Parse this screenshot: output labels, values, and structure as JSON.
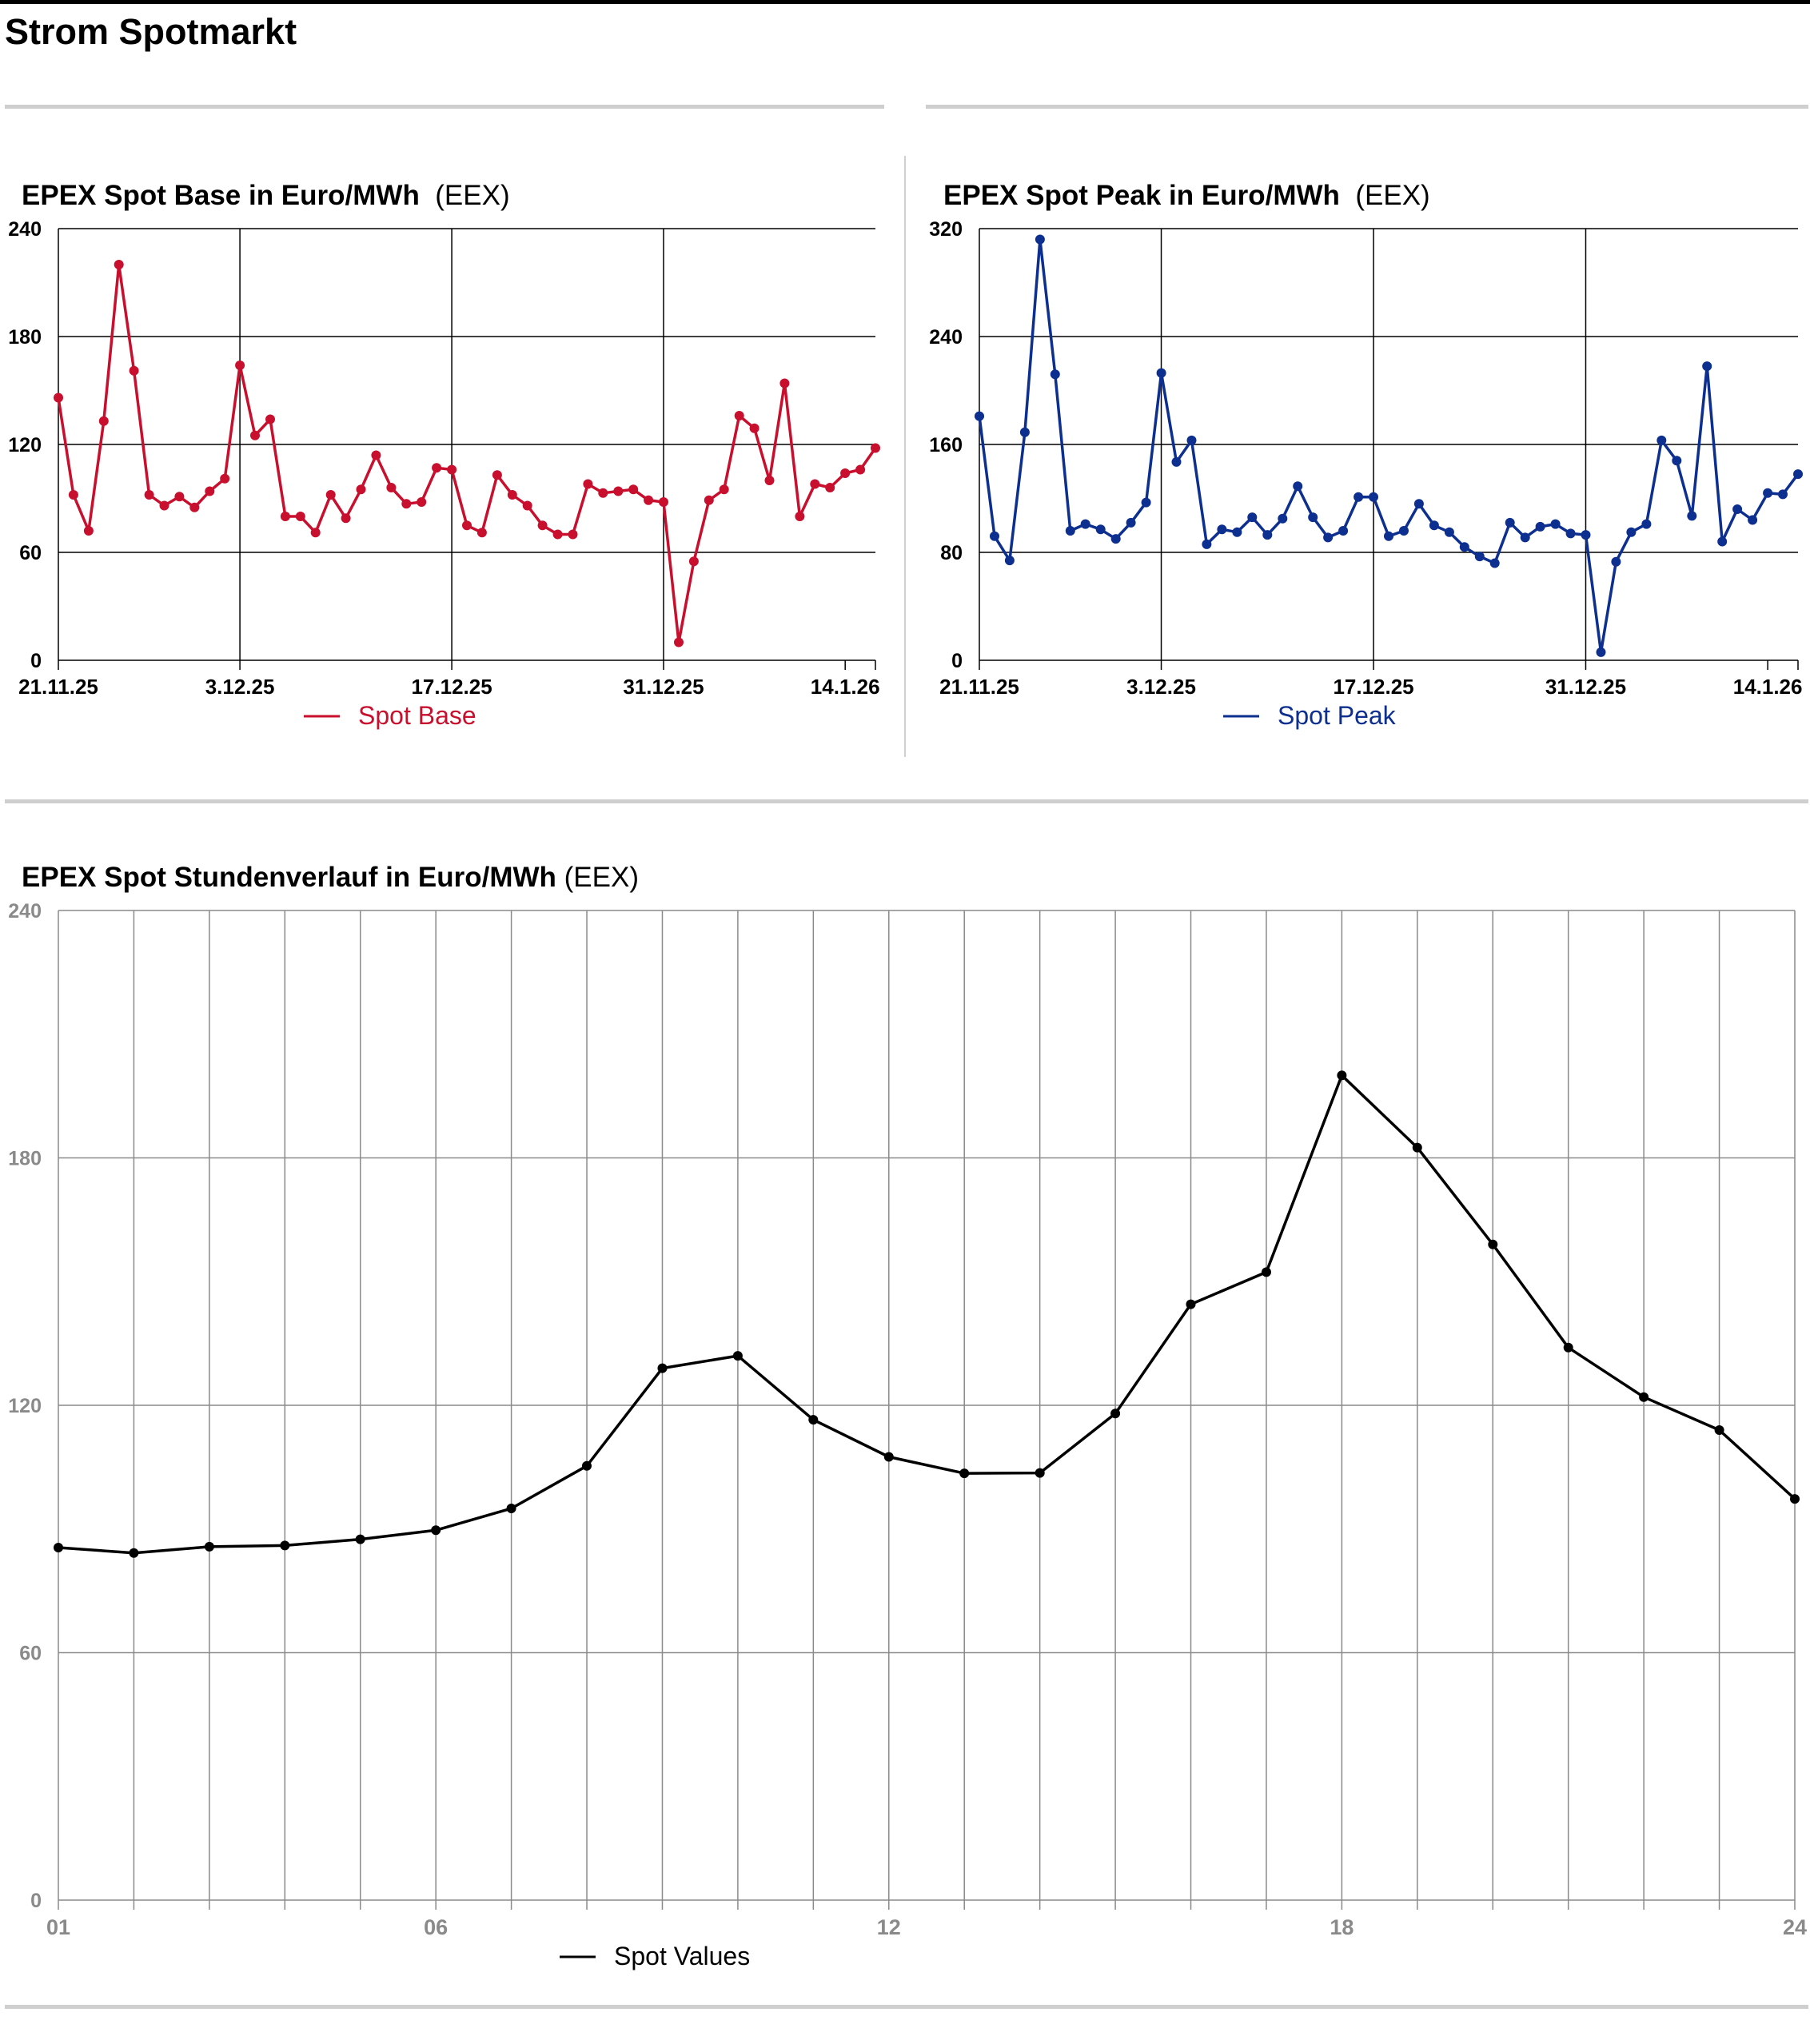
{
  "page": {
    "title": "Strom Spotmarkt"
  },
  "colors": {
    "base": "#c8102e",
    "peak": "#0d2f8f",
    "hourly": "#000000",
    "grid": "#000000",
    "grid_light": "#8a8a8a"
  },
  "chart_data": [
    {
      "type": "line",
      "title": "EPEX Spot Base in Euro/MWh",
      "source": "(EEX)",
      "xlabel": "",
      "ylabel": "",
      "ylim": [
        0,
        240
      ],
      "yticks": [
        "0",
        "60",
        "120",
        "180",
        "240"
      ],
      "xtick_labels": [
        "21.11.25",
        "3.12.25",
        "17.12.25",
        "31.12.25",
        "14.1.26"
      ],
      "grid": true,
      "legend": "bottom-center",
      "series": [
        {
          "name": "Spot Base",
          "values": [
            146,
            92,
            72,
            133,
            220,
            161,
            92,
            86,
            91,
            85,
            94,
            101,
            164,
            125,
            134,
            80,
            80,
            71,
            92,
            79,
            95,
            114,
            96,
            87,
            88,
            107,
            106,
            75,
            71,
            103,
            92,
            86,
            75,
            70,
            70,
            98,
            93,
            94,
            95,
            89,
            88,
            10,
            55,
            89,
            95,
            136,
            129,
            100,
            154,
            80,
            98,
            96,
            104,
            106,
            118
          ]
        }
      ]
    },
    {
      "type": "line",
      "title": "EPEX Spot Peak in Euro/MWh",
      "source": "(EEX)",
      "xlabel": "",
      "ylabel": "",
      "ylim": [
        0,
        320
      ],
      "yticks": [
        "0",
        "80",
        "160",
        "240",
        "320"
      ],
      "xtick_labels": [
        "21.11.25",
        "3.12.25",
        "17.12.25",
        "31.12.25",
        "14.1.26"
      ],
      "grid": true,
      "legend": "bottom-center",
      "series": [
        {
          "name": "Spot Peak",
          "values": [
            181,
            92,
            74,
            169,
            312,
            212,
            96,
            101,
            97,
            90,
            102,
            117,
            213,
            147,
            163,
            86,
            97,
            95,
            106,
            93,
            105,
            129,
            106,
            91,
            96,
            121,
            121,
            92,
            96,
            116,
            100,
            95,
            84,
            77,
            72,
            102,
            91,
            99,
            101,
            94,
            93,
            6,
            73,
            95,
            101,
            163,
            148,
            107,
            218,
            88,
            112,
            104,
            124,
            123,
            138
          ]
        }
      ]
    },
    {
      "type": "line",
      "title": "EPEX Spot Stundenverlauf in Euro/MWh",
      "source": "(EEX)",
      "xlabel": "",
      "ylabel": "",
      "ylim": [
        0,
        240
      ],
      "yticks": [
        "0",
        "60",
        "120",
        "180",
        "240"
      ],
      "x": [
        1,
        2,
        3,
        4,
        5,
        6,
        7,
        8,
        9,
        10,
        11,
        12,
        13,
        14,
        15,
        16,
        17,
        18,
        19,
        20,
        21,
        22,
        23,
        24
      ],
      "xtick_labels": [
        "01",
        "06",
        "12",
        "18",
        "24"
      ],
      "grid": true,
      "legend": "bottom-center",
      "series": [
        {
          "name": "Spot Values",
          "values": [
            85.5,
            84.2,
            85.7,
            86.0,
            87.5,
            89.7,
            95.0,
            105.3,
            129.0,
            132.0,
            116.5,
            107.5,
            103.5,
            103.6,
            118.0,
            144.5,
            152.3,
            200.0,
            182.5,
            159.0,
            134.0,
            122.0,
            114.0,
            97.3
          ]
        }
      ]
    }
  ]
}
